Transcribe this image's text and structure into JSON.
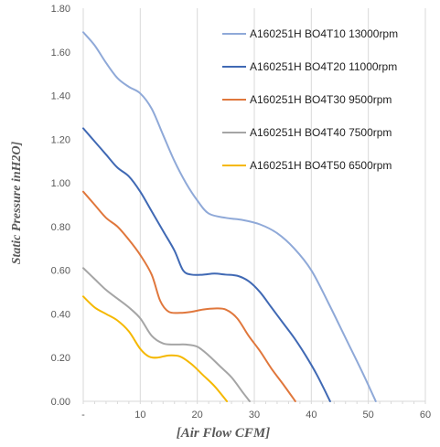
{
  "chart_data": {
    "type": "line",
    "title": "",
    "xlabel": "[Air Flow CFM]",
    "ylabel": "Static Pressure inH2O]",
    "xlim": [
      0,
      60
    ],
    "ylim": [
      0,
      1.8
    ],
    "x_ticks": [
      "-",
      "10",
      "20",
      "30",
      "40",
      "50",
      "60"
    ],
    "y_ticks": [
      "0.00",
      "0.20",
      "0.40",
      "0.60",
      "0.80",
      "1.00",
      "1.20",
      "1.40",
      "1.60",
      "1.80"
    ],
    "grid": "vertical",
    "legend": "top-right",
    "series": [
      {
        "name": "A160251H BO4T10 13000rpm",
        "color": "#8fa9d8",
        "points": [
          [
            0,
            1.69
          ],
          [
            2,
            1.63
          ],
          [
            4,
            1.55
          ],
          [
            6,
            1.48
          ],
          [
            8,
            1.44
          ],
          [
            10,
            1.41
          ],
          [
            12,
            1.34
          ],
          [
            14,
            1.22
          ],
          [
            16,
            1.1
          ],
          [
            18,
            1.0
          ],
          [
            20,
            0.92
          ],
          [
            22,
            0.86
          ],
          [
            25,
            0.84
          ],
          [
            28,
            0.83
          ],
          [
            31,
            0.81
          ],
          [
            34,
            0.77
          ],
          [
            37,
            0.7
          ],
          [
            40,
            0.6
          ],
          [
            43,
            0.45
          ],
          [
            46,
            0.29
          ],
          [
            49,
            0.13
          ],
          [
            51.3,
            0.0
          ]
        ]
      },
      {
        "name": "A160251H BO4T20 11000rpm",
        "color": "#4069b4",
        "points": [
          [
            0,
            1.25
          ],
          [
            2,
            1.19
          ],
          [
            4,
            1.13
          ],
          [
            6,
            1.07
          ],
          [
            8,
            1.03
          ],
          [
            10,
            0.96
          ],
          [
            12,
            0.87
          ],
          [
            14,
            0.78
          ],
          [
            16,
            0.69
          ],
          [
            17.5,
            0.6
          ],
          [
            19,
            0.58
          ],
          [
            21,
            0.58
          ],
          [
            23,
            0.585
          ],
          [
            25,
            0.58
          ],
          [
            27,
            0.575
          ],
          [
            29,
            0.55
          ],
          [
            31,
            0.5
          ],
          [
            33,
            0.43
          ],
          [
            35,
            0.36
          ],
          [
            37,
            0.29
          ],
          [
            39,
            0.21
          ],
          [
            41,
            0.12
          ],
          [
            43.3,
            0.0
          ]
        ]
      },
      {
        "name": "A160251H BO4T30 9500rpm",
        "color": "#e0773c",
        "points": [
          [
            0,
            0.96
          ],
          [
            2,
            0.9
          ],
          [
            4,
            0.84
          ],
          [
            6,
            0.8
          ],
          [
            8,
            0.74
          ],
          [
            10,
            0.67
          ],
          [
            12,
            0.58
          ],
          [
            13.5,
            0.46
          ],
          [
            15,
            0.41
          ],
          [
            17,
            0.405
          ],
          [
            19,
            0.41
          ],
          [
            21,
            0.42
          ],
          [
            23,
            0.425
          ],
          [
            25,
            0.42
          ],
          [
            27,
            0.38
          ],
          [
            29,
            0.3
          ],
          [
            31,
            0.23
          ],
          [
            33,
            0.15
          ],
          [
            35,
            0.08
          ],
          [
            37.2,
            0.0
          ]
        ]
      },
      {
        "name": "A160251H BO4T40 7500rpm",
        "color": "#a5a5a5",
        "points": [
          [
            0,
            0.61
          ],
          [
            2,
            0.56
          ],
          [
            4,
            0.51
          ],
          [
            6,
            0.47
          ],
          [
            8,
            0.43
          ],
          [
            10,
            0.38
          ],
          [
            12,
            0.3
          ],
          [
            14,
            0.265
          ],
          [
            16,
            0.26
          ],
          [
            18,
            0.26
          ],
          [
            20,
            0.25
          ],
          [
            22,
            0.21
          ],
          [
            24,
            0.16
          ],
          [
            26,
            0.11
          ],
          [
            28,
            0.04
          ],
          [
            29.2,
            0.0
          ]
        ]
      },
      {
        "name": "A160251H BO4T50 6500rpm",
        "color": "#f5b800",
        "points": [
          [
            0,
            0.48
          ],
          [
            2,
            0.43
          ],
          [
            4,
            0.4
          ],
          [
            6,
            0.37
          ],
          [
            8,
            0.32
          ],
          [
            10,
            0.24
          ],
          [
            11.5,
            0.205
          ],
          [
            13,
            0.2
          ],
          [
            15,
            0.21
          ],
          [
            17,
            0.205
          ],
          [
            19,
            0.17
          ],
          [
            21,
            0.12
          ],
          [
            23,
            0.07
          ],
          [
            25.2,
            0.0
          ]
        ]
      }
    ]
  }
}
